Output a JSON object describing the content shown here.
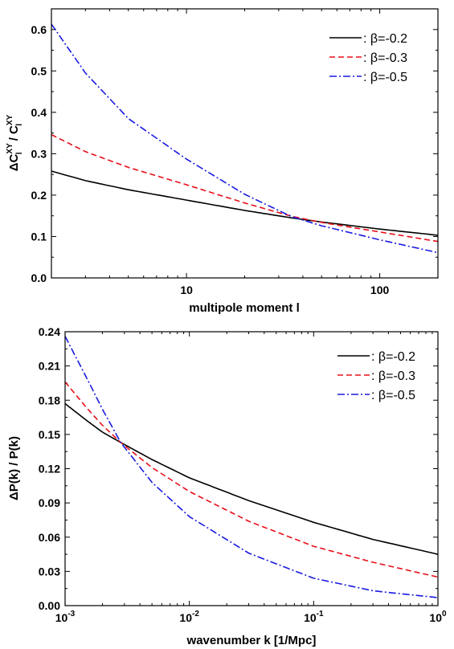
{
  "chart_data": [
    {
      "type": "line",
      "xlabel": "multipole moment l",
      "ylabel": "ΔC_l^XY / C_l^XY",
      "ylabel_parts": {
        "delta": "Δ",
        "C1": "C",
        "sup1": "XY",
        "sub1": "l",
        "slash": " / ",
        "C2": "C",
        "sup2": "XY",
        "sub2": "l"
      },
      "xscale": "log",
      "xlim": [
        2,
        200
      ],
      "ylim": [
        0.0,
        0.65
      ],
      "xticks": [
        10,
        100
      ],
      "xtick_labels": [
        "10",
        "100"
      ],
      "yticks": [
        0.0,
        0.1,
        0.2,
        0.3,
        0.4,
        0.5,
        0.6
      ],
      "ytick_labels": [
        "0.0",
        "0.1",
        "0.2",
        "0.3",
        "0.4",
        "0.5",
        "0.6"
      ],
      "grid": false,
      "legend_position": "top-right",
      "x": [
        2,
        3,
        5,
        10,
        20,
        35,
        50,
        100,
        200
      ],
      "series": [
        {
          "name": ": β=-0.2",
          "color": "#000000",
          "dash": "solid",
          "values": [
            0.258,
            0.235,
            0.213,
            0.188,
            0.163,
            0.145,
            0.135,
            0.118,
            0.103
          ]
        },
        {
          "name": ": β=-0.3",
          "color": "#e8101a",
          "dash": "dashed",
          "values": [
            0.346,
            0.305,
            0.267,
            0.225,
            0.181,
            0.149,
            0.134,
            0.111,
            0.088
          ]
        },
        {
          "name": ": β=-0.5",
          "color": "#1a1ae0",
          "dash": "dashdot",
          "values": [
            0.613,
            0.495,
            0.385,
            0.287,
            0.202,
            0.148,
            0.126,
            0.092,
            0.061
          ]
        }
      ]
    },
    {
      "type": "line",
      "xlabel": "wavenumber k [1/Mpc]",
      "ylabel": "ΔP(k) / P(k)",
      "xscale": "log",
      "xlim": [
        0.001,
        1
      ],
      "ylim": [
        0.0,
        0.24
      ],
      "xticks": [
        0.001,
        0.01,
        0.1,
        1
      ],
      "xtick_labels": [
        {
          "base": "10",
          "exp": "-3"
        },
        {
          "base": "10",
          "exp": "-2"
        },
        {
          "base": "10",
          "exp": "-1"
        },
        {
          "base": "10",
          "exp": "0"
        }
      ],
      "yticks": [
        0.0,
        0.03,
        0.06,
        0.09,
        0.12,
        0.15,
        0.18,
        0.21,
        0.24
      ],
      "ytick_labels": [
        "0.00",
        "0.03",
        "0.06",
        "0.09",
        "0.12",
        "0.15",
        "0.18",
        "0.21",
        "0.24"
      ],
      "grid": false,
      "legend_position": "top-right",
      "x": [
        0.001,
        0.0015,
        0.002,
        0.0028,
        0.005,
        0.01,
        0.03,
        0.1,
        0.3,
        1
      ],
      "series": [
        {
          "name": ": β=-0.2",
          "color": "#000000",
          "dash": "solid",
          "values": [
            0.177,
            0.162,
            0.152,
            0.143,
            0.128,
            0.112,
            0.092,
            0.073,
            0.058,
            0.045
          ]
        },
        {
          "name": ": β=-0.3",
          "color": "#e8101a",
          "dash": "dashed",
          "values": [
            0.196,
            0.173,
            0.158,
            0.143,
            0.121,
            0.1,
            0.074,
            0.052,
            0.038,
            0.025
          ]
        },
        {
          "name": ": β=-0.5",
          "color": "#1a1ae0",
          "dash": "dashdot",
          "values": [
            0.236,
            0.199,
            0.172,
            0.143,
            0.108,
            0.078,
            0.046,
            0.024,
            0.013,
            0.007
          ]
        }
      ]
    }
  ]
}
